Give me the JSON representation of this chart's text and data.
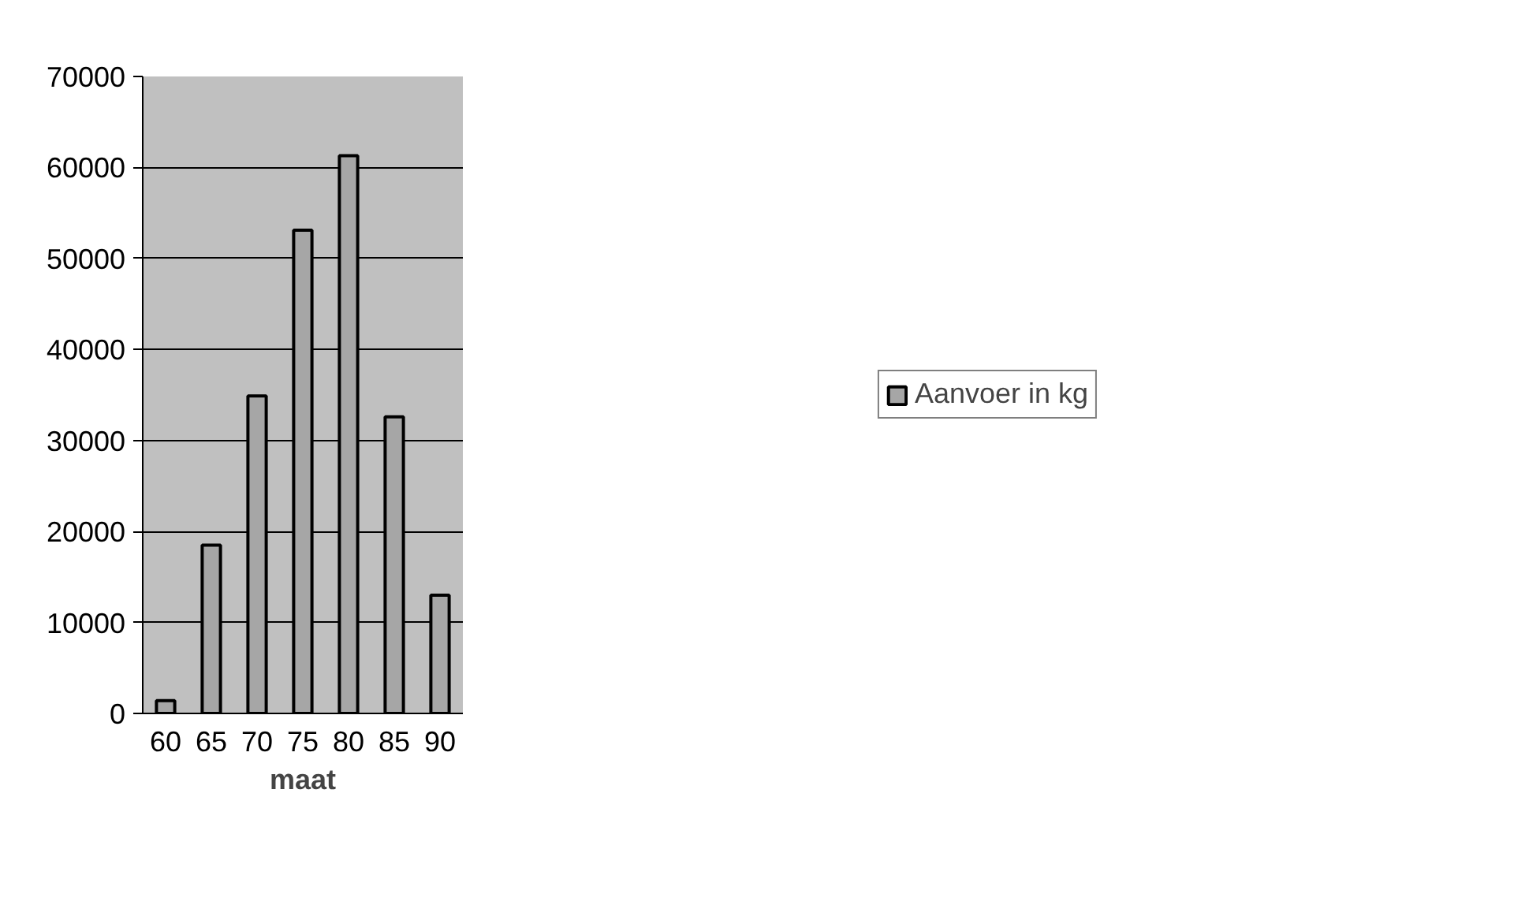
{
  "chart_data": {
    "type": "bar",
    "xlabel": "maat",
    "categories": [
      "60",
      "65",
      "70",
      "75",
      "80",
      "85",
      "90"
    ],
    "series": [
      {
        "name": "Aanvoer in kg",
        "color": "#a6a6a6",
        "values": [
          1400,
          18500,
          34900,
          53100,
          61300,
          32600,
          13000
        ]
      }
    ],
    "ylim": [
      0,
      70000
    ],
    "yticks": [
      0,
      10000,
      20000,
      30000,
      40000,
      50000,
      60000,
      70000
    ],
    "grid": "y",
    "legend": "right"
  }
}
